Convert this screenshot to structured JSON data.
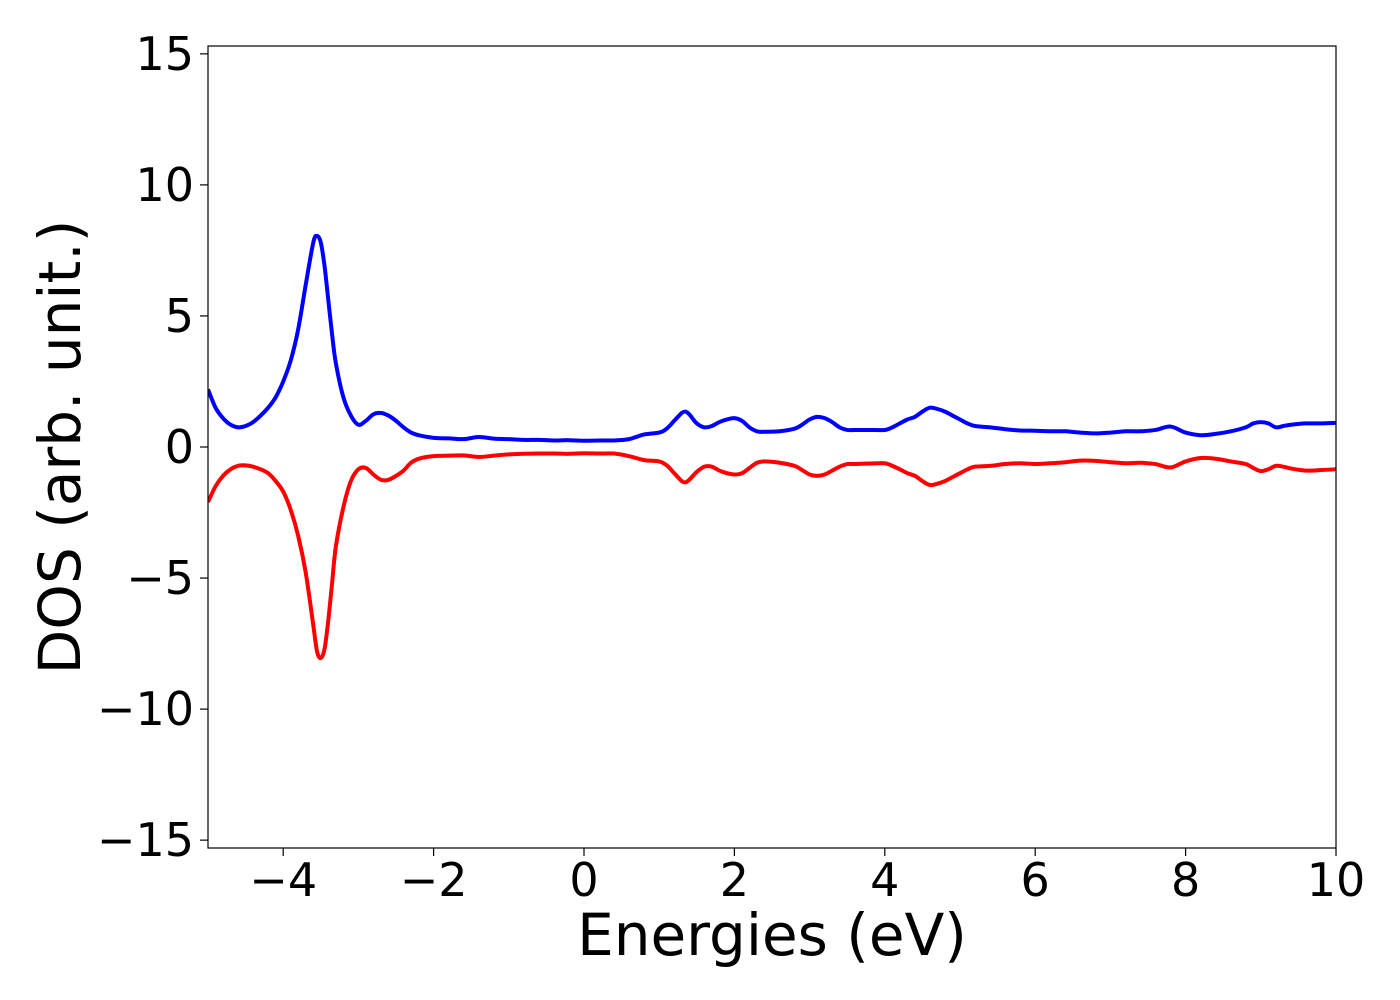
{
  "chart_data": {
    "type": "line",
    "title": "",
    "xlabel": "Energies (eV)",
    "ylabel": "DOS (arb. unit.)",
    "xlim": [
      -5,
      10
    ],
    "ylim": [
      -15.3,
      15.3
    ],
    "xticks": [
      -4,
      -2,
      0,
      2,
      4,
      6,
      8,
      10
    ],
    "yticks": [
      -15,
      -10,
      -5,
      0,
      5,
      10,
      15
    ],
    "xtick_labels": [
      "−4",
      "−2",
      "0",
      "2",
      "4",
      "6",
      "8",
      "10"
    ],
    "ytick_labels": [
      "−15",
      "−10",
      "−5",
      "0",
      "5",
      "10",
      "15"
    ],
    "grid": false,
    "legend": "none",
    "series": [
      {
        "color": "#0000ff",
        "x": [
          -5.0,
          -4.9,
          -4.8,
          -4.7,
          -4.6,
          -4.5,
          -4.4,
          -4.3,
          -4.2,
          -4.1,
          -4.0,
          -3.9,
          -3.8,
          -3.7,
          -3.6,
          -3.55,
          -3.5,
          -3.45,
          -3.4,
          -3.35,
          -3.3,
          -3.2,
          -3.1,
          -3.0,
          -2.9,
          -2.8,
          -2.7,
          -2.6,
          -2.5,
          -2.4,
          -2.3,
          -2.2,
          -2.0,
          -1.8,
          -1.6,
          -1.4,
          -1.2,
          -1.0,
          -0.8,
          -0.6,
          -0.4,
          -0.2,
          0.0,
          0.2,
          0.4,
          0.6,
          0.8,
          1.0,
          1.1,
          1.2,
          1.3,
          1.35,
          1.4,
          1.5,
          1.6,
          1.7,
          1.8,
          1.9,
          2.0,
          2.1,
          2.2,
          2.3,
          2.4,
          2.6,
          2.8,
          2.9,
          3.0,
          3.1,
          3.2,
          3.3,
          3.4,
          3.5,
          3.6,
          3.8,
          4.0,
          4.1,
          4.2,
          4.3,
          4.4,
          4.5,
          4.6,
          4.7,
          4.8,
          4.9,
          5.0,
          5.1,
          5.2,
          5.4,
          5.6,
          5.8,
          6.0,
          6.2,
          6.4,
          6.6,
          6.8,
          7.0,
          7.2,
          7.4,
          7.6,
          7.8,
          8.0,
          8.2,
          8.4,
          8.6,
          8.8,
          8.9,
          9.0,
          9.1,
          9.2,
          9.3,
          9.4,
          9.6,
          9.8,
          10.0
        ],
        "y": [
          2.2,
          1.5,
          1.1,
          0.85,
          0.75,
          0.8,
          0.95,
          1.2,
          1.5,
          1.9,
          2.5,
          3.3,
          4.5,
          6.2,
          7.8,
          8.05,
          7.8,
          6.9,
          5.6,
          4.3,
          3.2,
          1.9,
          1.2,
          0.85,
          1.0,
          1.25,
          1.3,
          1.2,
          1.0,
          0.75,
          0.55,
          0.45,
          0.35,
          0.33,
          0.3,
          0.38,
          0.32,
          0.3,
          0.27,
          0.27,
          0.25,
          0.26,
          0.24,
          0.25,
          0.25,
          0.3,
          0.48,
          0.55,
          0.7,
          1.0,
          1.3,
          1.35,
          1.25,
          0.9,
          0.75,
          0.8,
          0.95,
          1.05,
          1.1,
          1.0,
          0.75,
          0.6,
          0.58,
          0.6,
          0.7,
          0.85,
          1.05,
          1.15,
          1.1,
          0.95,
          0.75,
          0.65,
          0.65,
          0.65,
          0.65,
          0.75,
          0.9,
          1.05,
          1.15,
          1.35,
          1.5,
          1.45,
          1.35,
          1.2,
          1.05,
          0.9,
          0.8,
          0.75,
          0.68,
          0.63,
          0.62,
          0.6,
          0.6,
          0.55,
          0.52,
          0.55,
          0.6,
          0.6,
          0.65,
          0.78,
          0.55,
          0.45,
          0.5,
          0.6,
          0.75,
          0.9,
          0.95,
          0.9,
          0.75,
          0.8,
          0.85,
          0.9,
          0.9,
          0.92
        ]
      },
      {
        "color": "#ff0000",
        "x": [
          -5.0,
          -4.9,
          -4.8,
          -4.7,
          -4.6,
          -4.5,
          -4.4,
          -4.3,
          -4.2,
          -4.1,
          -4.0,
          -3.9,
          -3.8,
          -3.7,
          -3.6,
          -3.55,
          -3.5,
          -3.45,
          -3.4,
          -3.35,
          -3.3,
          -3.2,
          -3.1,
          -3.0,
          -2.9,
          -2.8,
          -2.7,
          -2.6,
          -2.5,
          -2.4,
          -2.3,
          -2.2,
          -2.0,
          -1.8,
          -1.6,
          -1.4,
          -1.2,
          -1.0,
          -0.8,
          -0.6,
          -0.4,
          -0.2,
          0.0,
          0.2,
          0.4,
          0.6,
          0.8,
          1.0,
          1.1,
          1.2,
          1.3,
          1.35,
          1.4,
          1.5,
          1.6,
          1.7,
          1.8,
          1.9,
          2.0,
          2.1,
          2.2,
          2.3,
          2.4,
          2.6,
          2.8,
          2.9,
          3.0,
          3.1,
          3.2,
          3.3,
          3.4,
          3.5,
          3.6,
          3.8,
          4.0,
          4.1,
          4.2,
          4.3,
          4.4,
          4.5,
          4.6,
          4.7,
          4.8,
          4.9,
          5.0,
          5.1,
          5.2,
          5.4,
          5.6,
          5.8,
          6.0,
          6.2,
          6.4,
          6.6,
          6.8,
          7.0,
          7.2,
          7.4,
          7.6,
          7.8,
          8.0,
          8.2,
          8.4,
          8.6,
          8.8,
          8.9,
          9.0,
          9.1,
          9.2,
          9.3,
          9.4,
          9.6,
          9.8,
          10.0
        ],
        "y": [
          -2.1,
          -1.5,
          -1.1,
          -0.85,
          -0.72,
          -0.7,
          -0.75,
          -0.85,
          -1.0,
          -1.3,
          -1.7,
          -2.4,
          -3.4,
          -4.8,
          -6.8,
          -7.8,
          -8.05,
          -7.7,
          -6.6,
          -5.2,
          -3.8,
          -2.3,
          -1.3,
          -0.85,
          -0.8,
          -1.05,
          -1.25,
          -1.25,
          -1.1,
          -0.9,
          -0.6,
          -0.45,
          -0.35,
          -0.33,
          -0.32,
          -0.38,
          -0.33,
          -0.28,
          -0.26,
          -0.25,
          -0.25,
          -0.26,
          -0.24,
          -0.25,
          -0.25,
          -0.35,
          -0.5,
          -0.55,
          -0.7,
          -1.0,
          -1.3,
          -1.35,
          -1.25,
          -0.95,
          -0.75,
          -0.75,
          -0.9,
          -1.0,
          -1.05,
          -1.0,
          -0.8,
          -0.6,
          -0.55,
          -0.6,
          -0.72,
          -0.88,
          -1.05,
          -1.1,
          -1.05,
          -0.9,
          -0.75,
          -0.65,
          -0.65,
          -0.63,
          -0.62,
          -0.72,
          -0.85,
          -1.0,
          -1.1,
          -1.3,
          -1.45,
          -1.4,
          -1.3,
          -1.15,
          -1.0,
          -0.85,
          -0.75,
          -0.72,
          -0.65,
          -0.62,
          -0.65,
          -0.62,
          -0.58,
          -0.52,
          -0.53,
          -0.58,
          -0.62,
          -0.6,
          -0.65,
          -0.78,
          -0.55,
          -0.42,
          -0.45,
          -0.55,
          -0.65,
          -0.8,
          -0.92,
          -0.85,
          -0.72,
          -0.75,
          -0.82,
          -0.9,
          -0.88,
          -0.85
        ]
      }
    ]
  }
}
